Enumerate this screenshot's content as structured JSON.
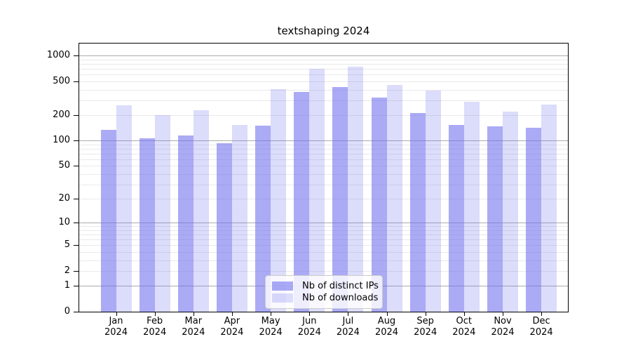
{
  "chart_data": {
    "type": "bar",
    "title": "textshaping 2024",
    "categories": [
      "Jan",
      "Feb",
      "Mar",
      "Apr",
      "May",
      "Jun",
      "Jul",
      "Aug",
      "Sep",
      "Oct",
      "Nov",
      "Dec"
    ],
    "category_year": "2024",
    "series": [
      {
        "name": "Nb of distinct IPs",
        "color": "rgba(110,110,238,0.59)",
        "values": [
          135,
          107,
          114,
          93,
          149,
          374,
          428,
          320,
          211,
          154,
          148,
          141
        ]
      },
      {
        "name": "Nb of downloads",
        "color": "rgba(110,110,238,0.24)",
        "values": [
          260,
          200,
          227,
          152,
          405,
          700,
          738,
          455,
          388,
          287,
          220,
          264
        ]
      }
    ],
    "scale": "log10(1+x)",
    "yticks": [
      0,
      1,
      2,
      5,
      10,
      20,
      50,
      100,
      200,
      500,
      1000
    ],
    "ylim": [
      0,
      1385
    ],
    "grid": {
      "major_values": [
        1,
        10,
        100,
        1000
      ],
      "major_color": "#ababab",
      "minor_color": "#e9e9e9"
    },
    "frame_color": "#000000",
    "legend_position": "bottom-center"
  }
}
